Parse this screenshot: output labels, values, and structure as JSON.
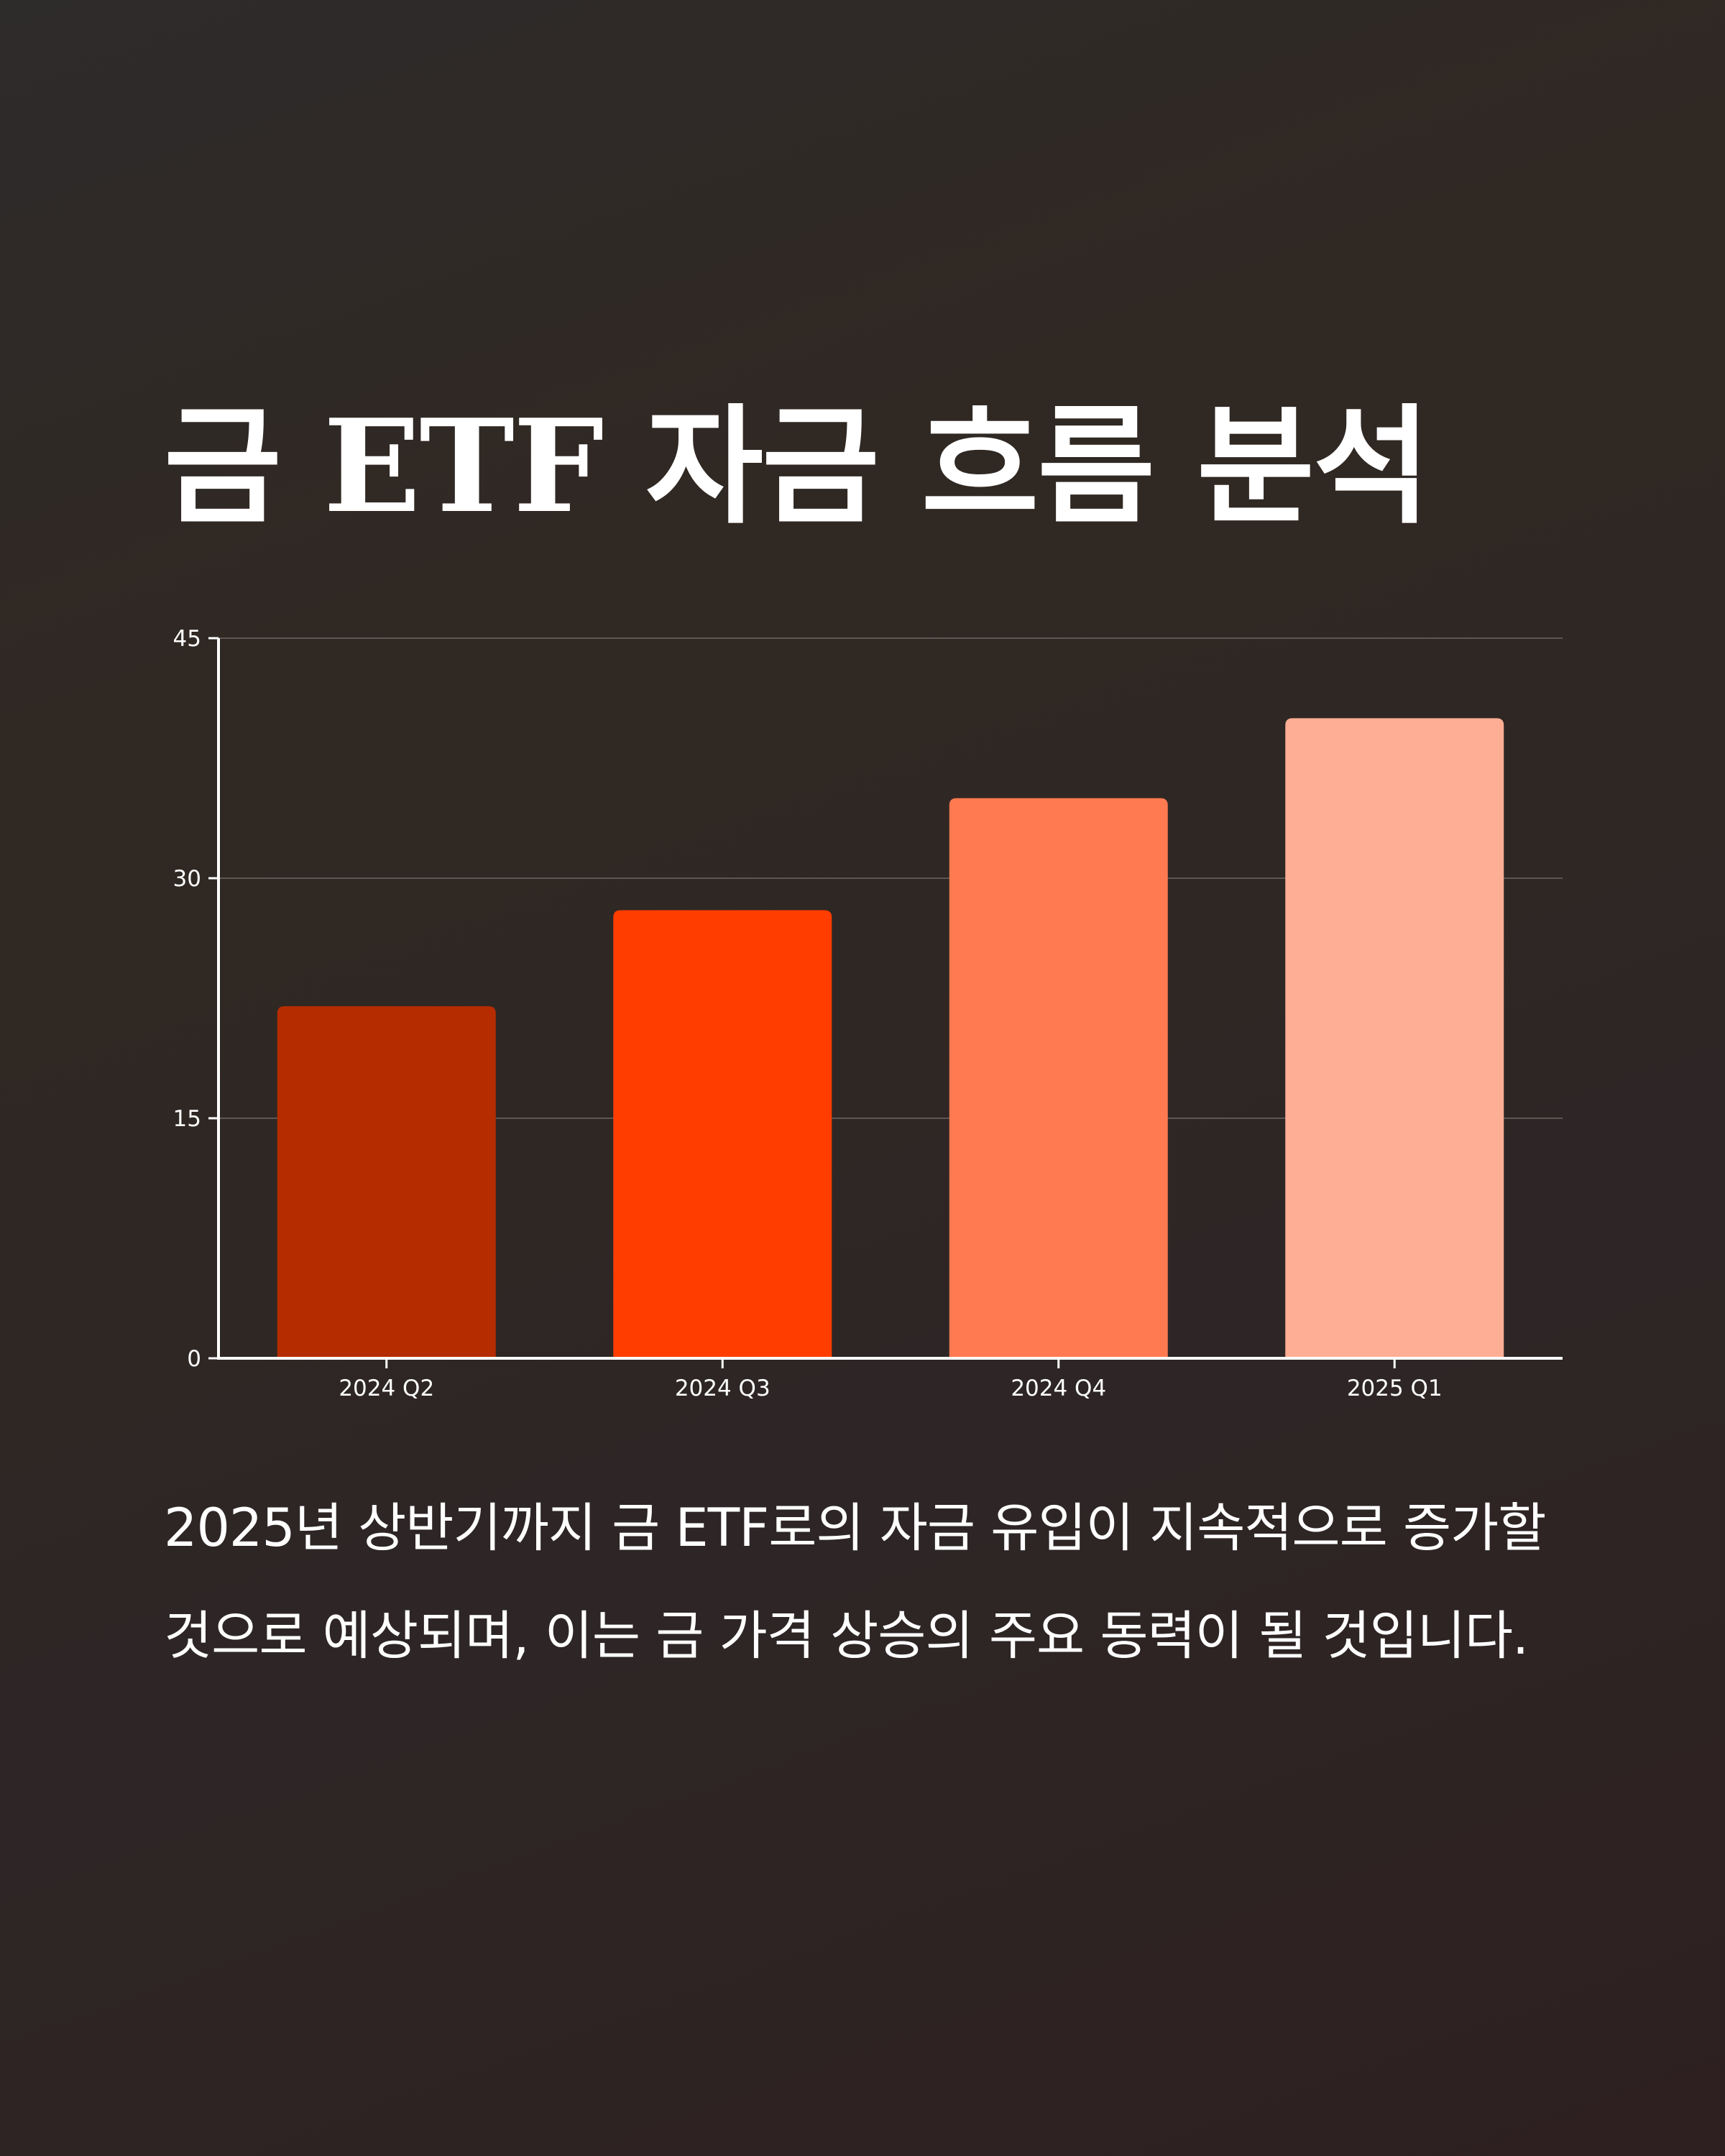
{
  "title": "금 ETF 자금 흐름 분석",
  "description": "2025년 상반기까지 금 ETF로의 자금 유입이 지속적으로 증가할 것으로 예상되며, 이는 금 가격 상승의 주요 동력이 될 것입니다.",
  "chart_data": {
    "type": "bar",
    "categories": [
      "2024 Q2",
      "2024 Q3",
      "2024 Q4",
      "2025 Q1"
    ],
    "values": [
      22,
      28,
      35,
      40
    ],
    "bar_colors": [
      "#b52c00",
      "#ff3d00",
      "#ff7a50",
      "#ffae96"
    ],
    "title": "",
    "xlabel": "",
    "ylabel": "",
    "ylim": [
      0,
      45
    ],
    "yticks": [
      0,
      15,
      30,
      45
    ],
    "grid": true,
    "legend": "none"
  }
}
